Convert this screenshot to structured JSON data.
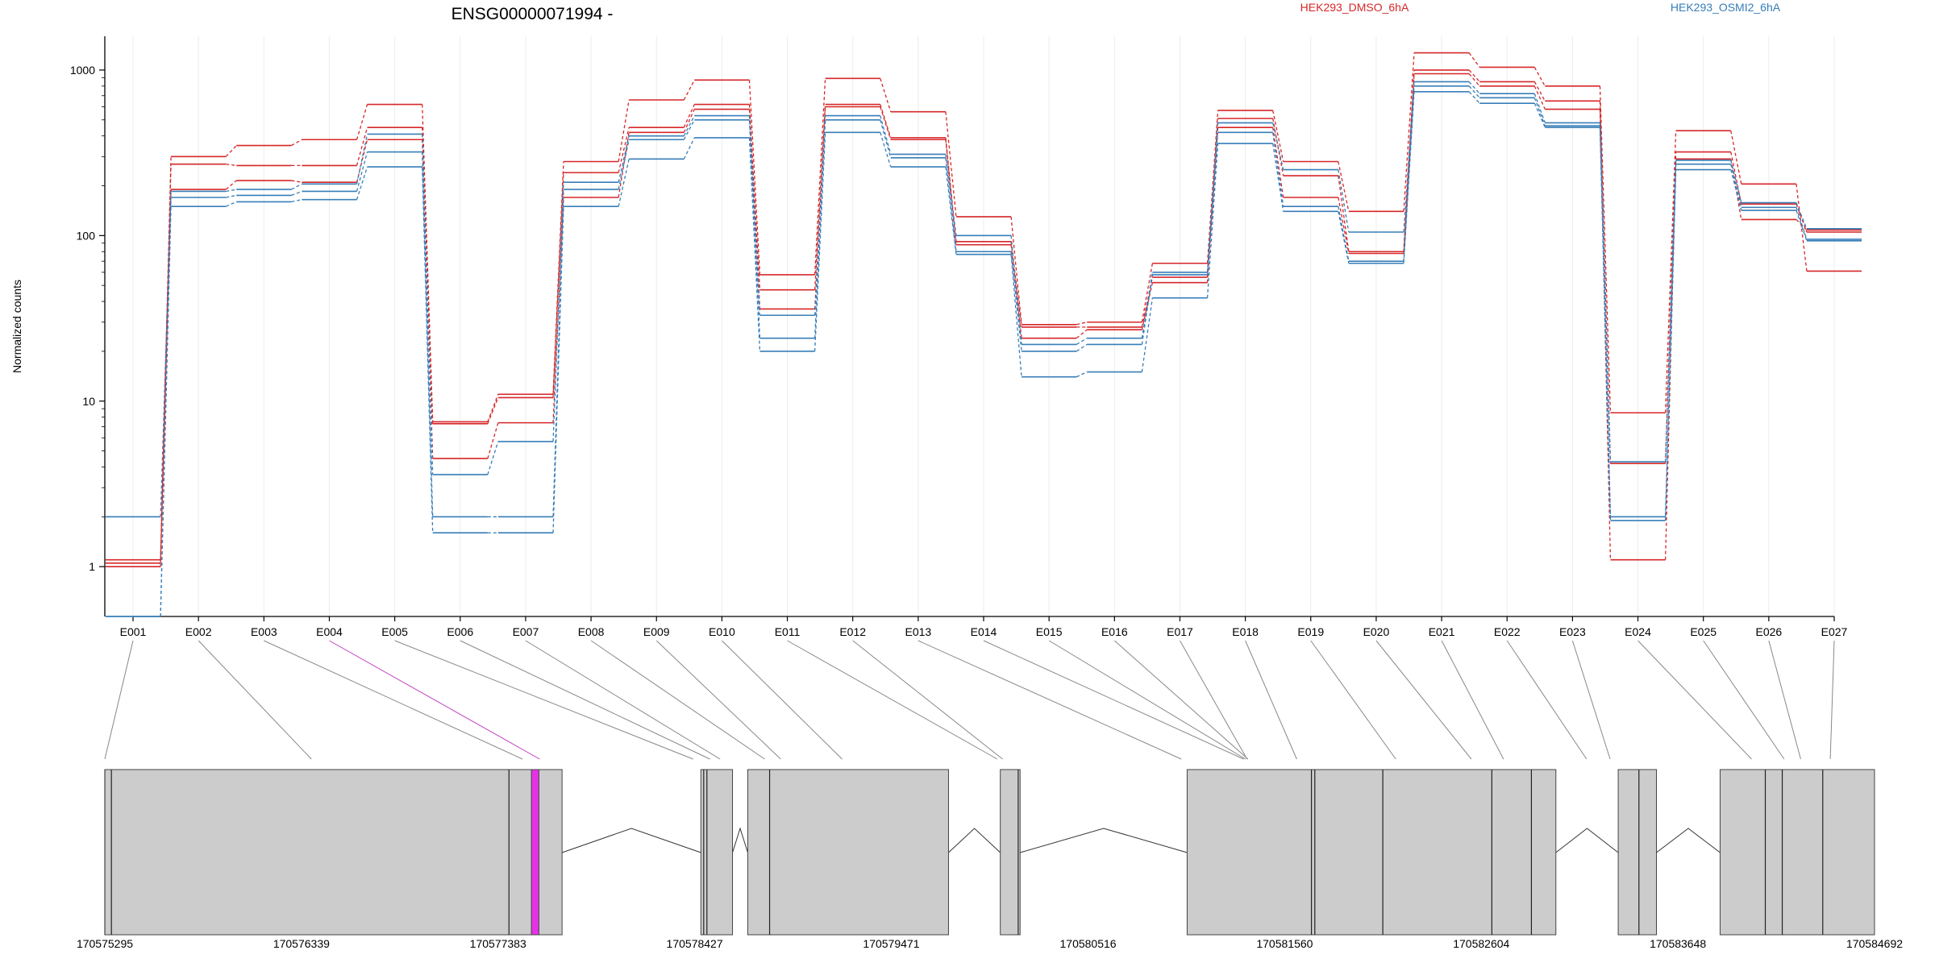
{
  "chart_data": {
    "type": "line",
    "title": "ENSG00000071994 -",
    "ylabel": "Normalized counts",
    "y_scale": "log",
    "ylim": [
      0.5,
      1600
    ],
    "y_ticks": [
      {
        "value": 1,
        "label": "1"
      },
      {
        "value": 10,
        "label": "10"
      },
      {
        "value": 100,
        "label": "100"
      },
      {
        "value": 1000,
        "label": "1000"
      }
    ],
    "grid": "vertical-light",
    "categories": [
      "E001",
      "E002",
      "E003",
      "E004",
      "E005",
      "E006",
      "E007",
      "E008",
      "E009",
      "E010",
      "E011",
      "E012",
      "E013",
      "E014",
      "E015",
      "E016",
      "E017",
      "E018",
      "E019",
      "E020",
      "E021",
      "E022",
      "E023",
      "E024",
      "E025",
      "E026",
      "E027"
    ],
    "legend": [
      {
        "label": "HEK293_DMSO_6hA",
        "color": "#d62728"
      },
      {
        "label": "HEK293_OSMI2_6hA",
        "color": "#377eb8"
      }
    ],
    "series": [
      {
        "group": "HEK293_DMSO_6hA",
        "color": "#d62728",
        "values": [
          1.0,
          300,
          350,
          380,
          620,
          7.5,
          11,
          280,
          660,
          870,
          58,
          890,
          560,
          130,
          29,
          30,
          68,
          570,
          280,
          140,
          1270,
          1040,
          800,
          8.5,
          430,
          205,
          61
        ]
      },
      {
        "group": "HEK293_DMSO_6hA",
        "color": "#d62728",
        "values": [
          1.1,
          270,
          265,
          265,
          450,
          7.3,
          10.5,
          240,
          450,
          620,
          47,
          620,
          390,
          92,
          28,
          28,
          56,
          510,
          230,
          80,
          1000,
          850,
          650,
          4.2,
          320,
          155,
          105
        ]
      },
      {
        "group": "HEK293_DMSO_6hA",
        "color": "#d62728",
        "values": [
          1.05,
          190,
          215,
          210,
          380,
          4.5,
          7.4,
          170,
          420,
          580,
          36,
          600,
          380,
          88,
          24,
          27,
          52,
          450,
          170,
          78,
          950,
          800,
          580,
          1.1,
          290,
          125,
          108
        ]
      },
      {
        "group": "HEK293_OSMI2_6hA",
        "color": "#377eb8",
        "values": [
          2.0,
          185,
          190,
          205,
          410,
          3.6,
          5.7,
          210,
          400,
          530,
          33,
          530,
          310,
          100,
          22,
          24,
          60,
          480,
          250,
          105,
          850,
          720,
          480,
          4.3,
          285,
          158,
          110
        ]
      },
      {
        "group": "HEK293_OSMI2_6hA",
        "color": "#377eb8",
        "values": [
          0.5,
          170,
          175,
          185,
          320,
          2.0,
          2.0,
          190,
          380,
          500,
          24,
          500,
          295,
          80,
          20,
          22,
          58,
          420,
          150,
          70,
          800,
          680,
          460,
          2.0,
          270,
          148,
          95
        ]
      },
      {
        "group": "HEK293_OSMI2_6hA",
        "color": "#377eb8",
        "values": [
          0.5,
          150,
          160,
          165,
          260,
          1.6,
          1.6,
          150,
          290,
          390,
          20,
          420,
          260,
          77,
          14,
          15,
          42,
          360,
          140,
          68,
          740,
          630,
          450,
          1.9,
          250,
          142,
          93
        ]
      }
    ],
    "gene_model": {
      "coordinate_labels": [
        "170575295",
        "170576339",
        "170577383",
        "170578427",
        "170579471",
        "170580516",
        "170581560",
        "170582604",
        "170583648",
        "170584692"
      ],
      "coordinate_range": [
        170575295,
        170584692
      ],
      "coordinate_ticks": [
        170575295,
        170576339,
        170577383,
        170578427,
        170579471,
        170580516,
        170581560,
        170582604,
        170583648,
        170584692
      ],
      "blocks": [
        [
          170575295,
          170577723
        ],
        [
          170578460,
          170578628
        ],
        [
          170578709,
          170579775
        ],
        [
          170580050,
          170580155
        ],
        [
          170581042,
          170583000
        ],
        [
          170583331,
          170583534
        ],
        [
          170583872,
          170584692
        ]
      ],
      "exon_divider_positions": [
        170575330,
        170577441,
        170578475,
        170578492,
        170578825,
        170580145,
        170581702,
        170581720,
        170582081,
        170582660,
        170582870,
        170583441,
        170584112,
        170584202,
        170584417
      ],
      "highlighted_exon": [
        170577560,
        170577600
      ],
      "highlight_color": "#e632e6",
      "exon_link_positions": [
        170575295,
        170576392,
        170577513,
        170577604,
        170578419,
        170578508,
        170578562,
        170578799,
        170578884,
        170579210,
        170580034,
        170580062,
        170581011,
        170581342,
        170581352,
        170581365,
        170581360,
        170581624,
        170582150,
        170582551,
        170582722,
        170583163,
        170583288,
        170584039,
        170584212,
        170584300,
        170584457
      ]
    }
  }
}
